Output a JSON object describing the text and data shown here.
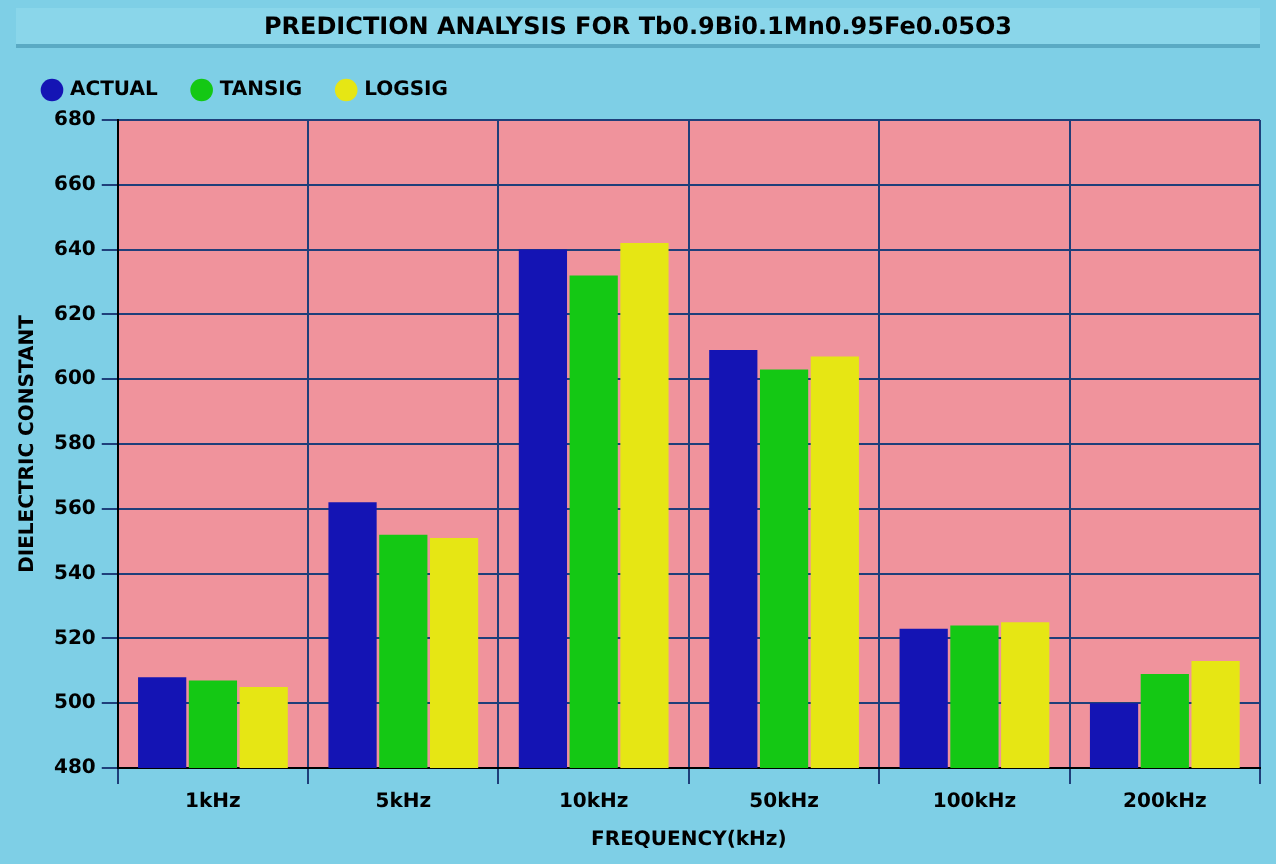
{
  "chart_data": {
    "type": "bar",
    "title": "PREDICTION ANALYSIS FOR Tb0.9Bi0.1Mn0.95Fe0.05O3",
    "xlabel": "FREQUENCY(kHz)",
    "ylabel": "DIELECTRIC CONSTANT",
    "categories": [
      "1kHz",
      "5kHz",
      "10kHz",
      "50kHz",
      "100kHz",
      "200kHz"
    ],
    "series": [
      {
        "name": "ACTUAL",
        "color": "#1414b4",
        "values": [
          508,
          562,
          640,
          609,
          523,
          500
        ]
      },
      {
        "name": "TANSIG",
        "color": "#14c814",
        "values": [
          507,
          552,
          632,
          603,
          524,
          509
        ]
      },
      {
        "name": "LOGSIG",
        "color": "#e6e614",
        "values": [
          505,
          551,
          642,
          607,
          525,
          513
        ]
      }
    ],
    "ylim": [
      480,
      680
    ],
    "yticks": [
      480,
      500,
      520,
      540,
      560,
      580,
      600,
      620,
      640,
      660,
      680
    ],
    "grid": true,
    "legend": "top left"
  }
}
